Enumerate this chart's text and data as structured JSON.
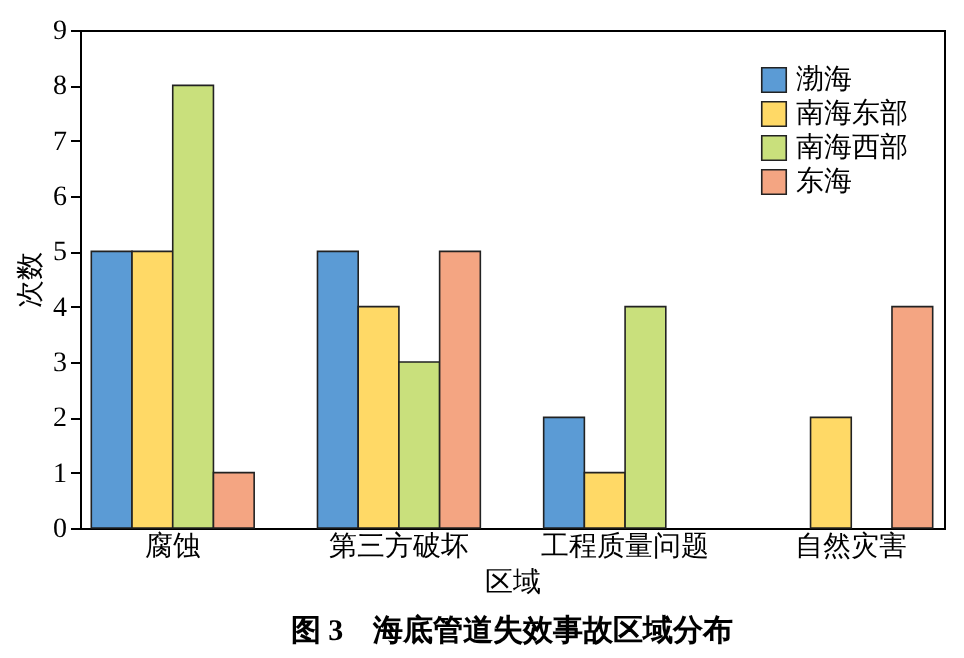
{
  "chart_data": {
    "type": "bar",
    "title": "图 3　海底管道失效事故区域分布",
    "xlabel": "区域",
    "ylabel": "次数",
    "categories": [
      "腐蚀",
      "第三方破坏",
      "工程质量问题",
      "自然灾害"
    ],
    "series": [
      {
        "name": "渤海",
        "color": "#5b9bd5",
        "values": [
          5,
          5,
          2,
          null
        ]
      },
      {
        "name": "南海东部",
        "color": "#ffd966",
        "values": [
          5,
          4,
          1,
          2
        ]
      },
      {
        "name": "南海西部",
        "color": "#c9e07c",
        "values": [
          8,
          3,
          4,
          null
        ]
      },
      {
        "name": "东海",
        "color": "#f4a582",
        "values": [
          1,
          5,
          null,
          4
        ]
      }
    ],
    "ylim": [
      0,
      9
    ],
    "yticks": [
      0,
      1,
      2,
      3,
      4,
      5,
      6,
      7,
      8,
      9
    ],
    "grid": false,
    "legend": "top right"
  }
}
